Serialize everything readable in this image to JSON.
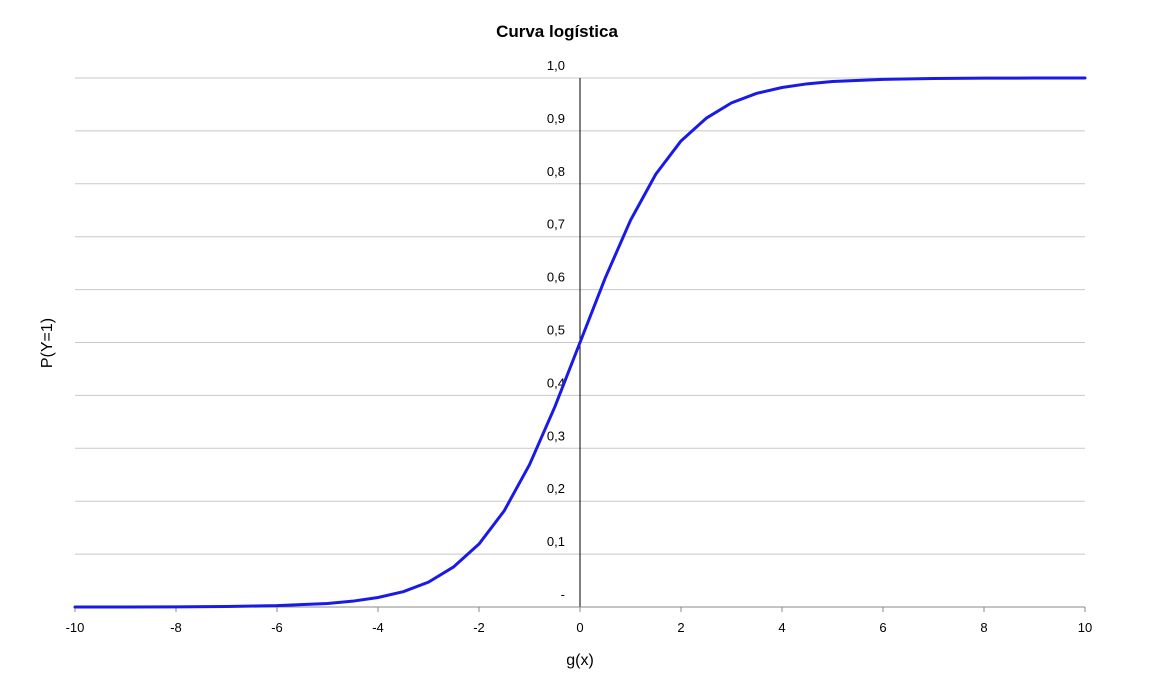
{
  "chart_data": {
    "type": "line",
    "title": "Curva logística",
    "xlabel": "g(x)",
    "ylabel": "P(Y=1)",
    "xlim": [
      -10,
      10
    ],
    "ylim": [
      0,
      1
    ],
    "x_ticks": [
      -10,
      -8,
      -6,
      -4,
      -2,
      0,
      2,
      4,
      6,
      8,
      10
    ],
    "x_tick_labels": [
      "-10",
      "-8",
      "-6",
      "-4",
      "-2",
      "0",
      "2",
      "4",
      "6",
      "8",
      "10"
    ],
    "y_ticks": [
      0,
      0.1,
      0.2,
      0.3,
      0.4,
      0.5,
      0.6,
      0.7,
      0.8,
      0.9,
      1.0
    ],
    "y_tick_labels": [
      "-",
      "0,1",
      "0,2",
      "0,3",
      "0,4",
      "0,5",
      "0,6",
      "0,7",
      "0,8",
      "0,9",
      "1,0"
    ],
    "grid": "horizontal",
    "legend": "none",
    "series": [
      {
        "color": "#1a1ae6",
        "x": [
          -10,
          -9,
          -8,
          -7,
          -6,
          -5,
          -4.5,
          -4,
          -3.5,
          -3,
          -2.5,
          -2,
          -1.5,
          -1,
          -0.5,
          0,
          0.5,
          1,
          1.5,
          2,
          2.5,
          3,
          3.5,
          4,
          4.5,
          5,
          6,
          7,
          8,
          9,
          10
        ],
        "y": [
          5e-05,
          0.0001,
          0.0003,
          0.0009,
          0.0025,
          0.0067,
          0.011,
          0.018,
          0.029,
          0.047,
          0.076,
          0.119,
          0.182,
          0.269,
          0.378,
          0.5,
          0.622,
          0.731,
          0.818,
          0.881,
          0.924,
          0.953,
          0.971,
          0.982,
          0.989,
          0.9933,
          0.9975,
          0.9991,
          0.9997,
          0.9999,
          0.99995
        ]
      }
    ]
  }
}
